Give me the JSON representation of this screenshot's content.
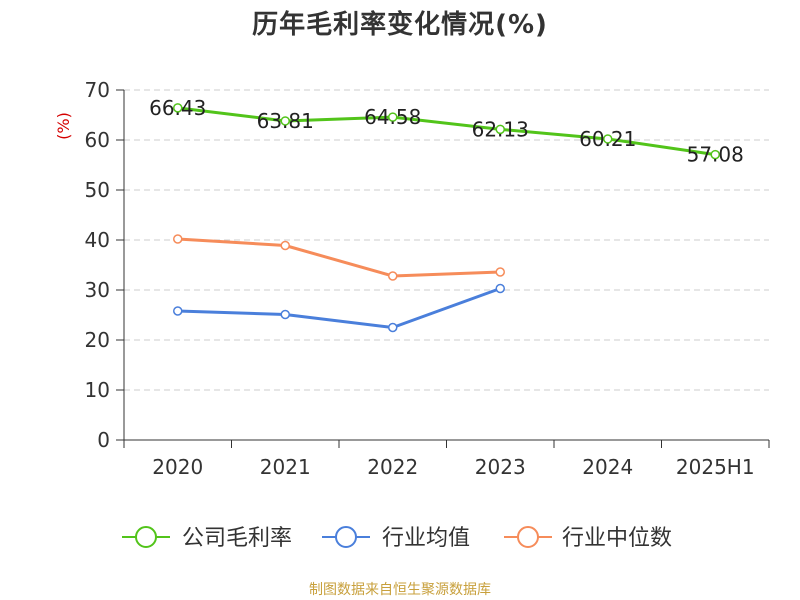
{
  "chart_data": {
    "type": "line",
    "title": "历年毛利率变化情况(%)",
    "ylabel": "(%)",
    "xlabel": "",
    "categories": [
      "2020",
      "2021",
      "2022",
      "2023",
      "2024",
      "2025H1"
    ],
    "ylim": [
      0,
      70
    ],
    "yticks": [
      0,
      10,
      20,
      30,
      40,
      50,
      60,
      70
    ],
    "grid": true,
    "legend_position": "bottom",
    "series": [
      {
        "name": "公司毛利率",
        "color": "#52c41a",
        "values": [
          66.43,
          63.81,
          64.58,
          62.13,
          60.21,
          57.08
        ],
        "labels": [
          "66.43",
          "63.81",
          "64.58",
          "62.13",
          "60.21",
          "57.08"
        ]
      },
      {
        "name": "行业均值",
        "color": "#4a7fdb",
        "values": [
          25.8,
          25.1,
          22.5,
          30.3,
          null,
          null
        ]
      },
      {
        "name": "行业中位数",
        "color": "#f68c5a",
        "values": [
          40.2,
          38.9,
          32.8,
          33.6,
          null,
          null
        ]
      }
    ]
  },
  "source_note": "制图数据来自恒生聚源数据库",
  "colors": {
    "axis": "#333333",
    "grid": "#cccccc",
    "ylabel": "#d40000",
    "source": "#c8a03c"
  }
}
